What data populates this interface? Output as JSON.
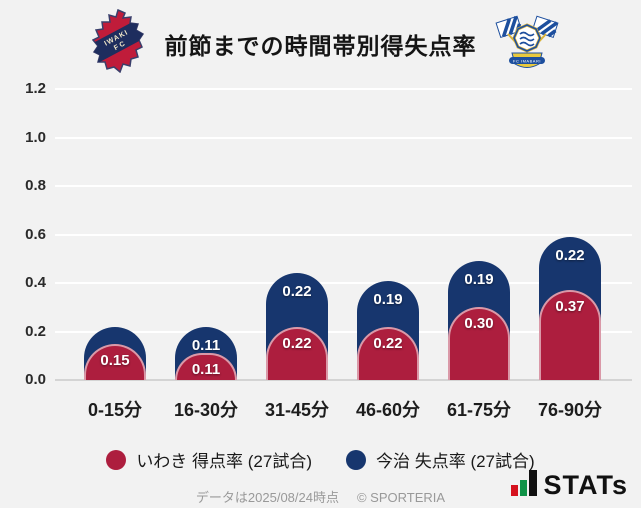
{
  "header": {
    "title": "前節までの時間帯別得失点率"
  },
  "chart_data": {
    "type": "bar",
    "stacked": true,
    "title": "前節までの時間帯別得失点率",
    "categories": [
      "0-15分",
      "16-30分",
      "31-45分",
      "46-60分",
      "61-75分",
      "76-90分"
    ],
    "series": [
      {
        "name": "いわき 得点率 (27試合)",
        "color": "#ad1e3e",
        "values": [
          0.15,
          0.11,
          0.22,
          0.22,
          0.3,
          0.37
        ],
        "labels": [
          "0.15",
          "0.11",
          "0.22",
          "0.22",
          "0.30",
          "0.37"
        ]
      },
      {
        "name": "今治 失点率 (27試合)",
        "color": "#17366e",
        "values": [
          0.07,
          0.11,
          0.22,
          0.19,
          0.19,
          0.22
        ],
        "labels": [
          "",
          "0.11",
          "0.22",
          "0.19",
          "0.19",
          "0.22"
        ]
      }
    ],
    "ylim": [
      0,
      1.2
    ],
    "yticks": [
      0,
      0.2,
      0.4,
      0.6,
      0.8,
      1.0,
      1.2
    ],
    "grid": true,
    "legend_position": "bottom"
  },
  "colors": {
    "background": "#f2f2f2",
    "iwaki_red": "#ad1e3e",
    "imabari_navy": "#17366e",
    "gridline": "#ffffff",
    "baseline": "#d4d4d4"
  },
  "footer": {
    "caption": "データは2025/08/24時点",
    "copyright": "© SPORTERIA",
    "brand": "STATs"
  }
}
